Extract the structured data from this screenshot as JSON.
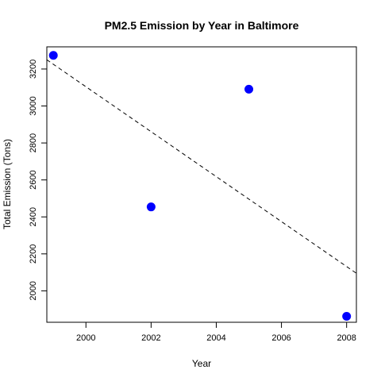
{
  "chart_data": {
    "type": "scatter",
    "title": "PM2.5 Emission by Year in Baltimore",
    "xlabel": "Year",
    "ylabel": "Total Emission (Tons)",
    "xlim": [
      1998.8,
      2008.3
    ],
    "ylim": [
      1830,
      3320
    ],
    "xticks": [
      2000,
      2002,
      2004,
      2006,
      2008
    ],
    "yticks": [
      2000,
      2200,
      2400,
      2600,
      2800,
      3000,
      3200
    ],
    "point_color": "#0000ff",
    "trendline_color": "#000000",
    "series": [
      {
        "x": [
          1999,
          2002,
          2005,
          2008
        ],
        "y": [
          3274,
          2454,
          3091,
          1862
        ]
      }
    ],
    "trendline": {
      "style": "dashed",
      "x": [
        1998.8,
        2008.3
      ],
      "y": [
        3250,
        2095
      ]
    },
    "grid": false
  }
}
